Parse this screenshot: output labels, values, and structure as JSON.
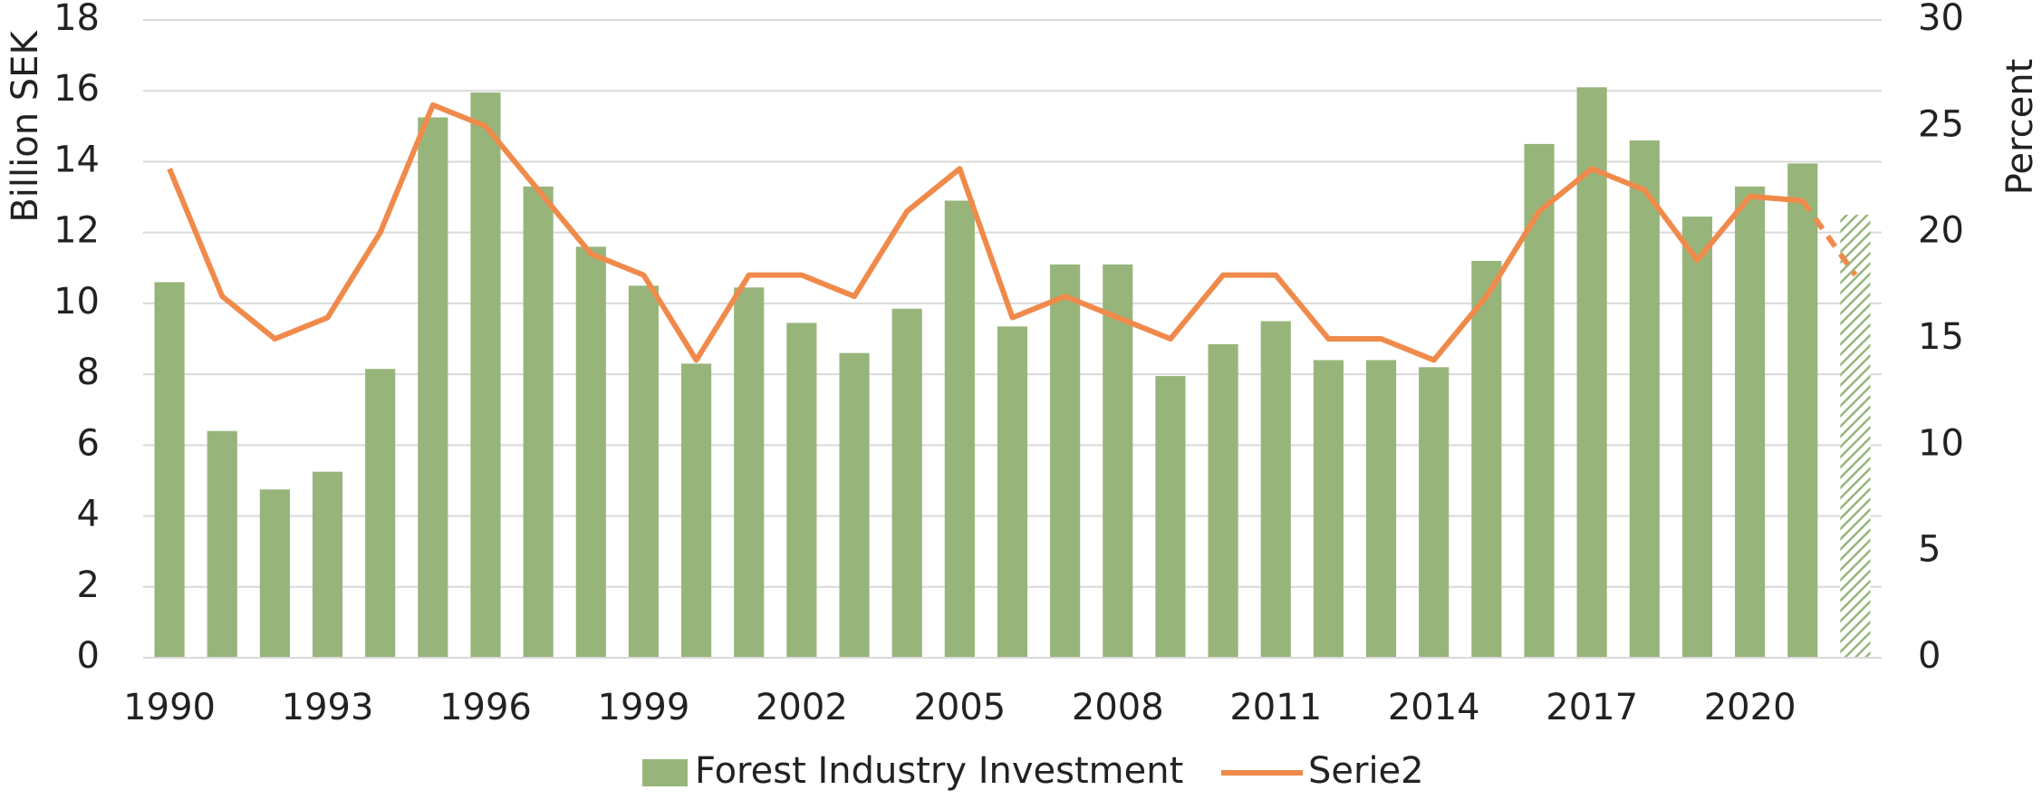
{
  "chart_data": {
    "type": "bar_line",
    "categories": [
      1990,
      null,
      null,
      1993,
      null,
      null,
      1996,
      null,
      null,
      1999,
      null,
      null,
      2002,
      null,
      null,
      2005,
      null,
      null,
      2008,
      null,
      null,
      2011,
      null,
      null,
      2014,
      null,
      null,
      2017,
      null,
      null,
      2020,
      null,
      null
    ],
    "series": [
      {
        "name": "Forest Industry Investment",
        "type": "bar",
        "color": "#97b57b",
        "hatch_last": true,
        "values": [
          10.6,
          6.4,
          4.75,
          5.25,
          8.15,
          15.25,
          15.95,
          13.3,
          11.6,
          10.5,
          8.3,
          10.45,
          9.45,
          8.6,
          9.85,
          12.9,
          9.35,
          11.1,
          11.1,
          7.95,
          8.85,
          9.5,
          8.4,
          8.4,
          8.2,
          11.2,
          14.5,
          16.1,
          14.6,
          12.45,
          13.3,
          13.95,
          12.5
        ]
      },
      {
        "name": "Serie2",
        "type": "line",
        "axis": "y2",
        "color": "#f08a4b",
        "dashed_last_segment": true,
        "values": [
          23,
          17,
          15,
          16,
          20,
          26,
          25,
          22,
          19,
          18,
          14,
          18,
          18,
          17,
          21,
          23,
          16,
          17,
          16,
          15,
          18,
          18,
          15,
          15,
          14,
          17,
          21,
          23,
          22,
          18.7,
          21.7,
          21.5,
          18
        ]
      }
    ],
    "y_label": "Billion SEK",
    "y2_label": "Percent",
    "ylim": [
      0,
      18
    ],
    "yticks": [
      0,
      2,
      4,
      6,
      8,
      10,
      12,
      14,
      16,
      18
    ],
    "y2lim": [
      0,
      30
    ],
    "y2ticks": [
      0,
      5,
      10,
      15,
      20,
      25,
      30
    ],
    "grid": true,
    "legend": "bottom"
  }
}
